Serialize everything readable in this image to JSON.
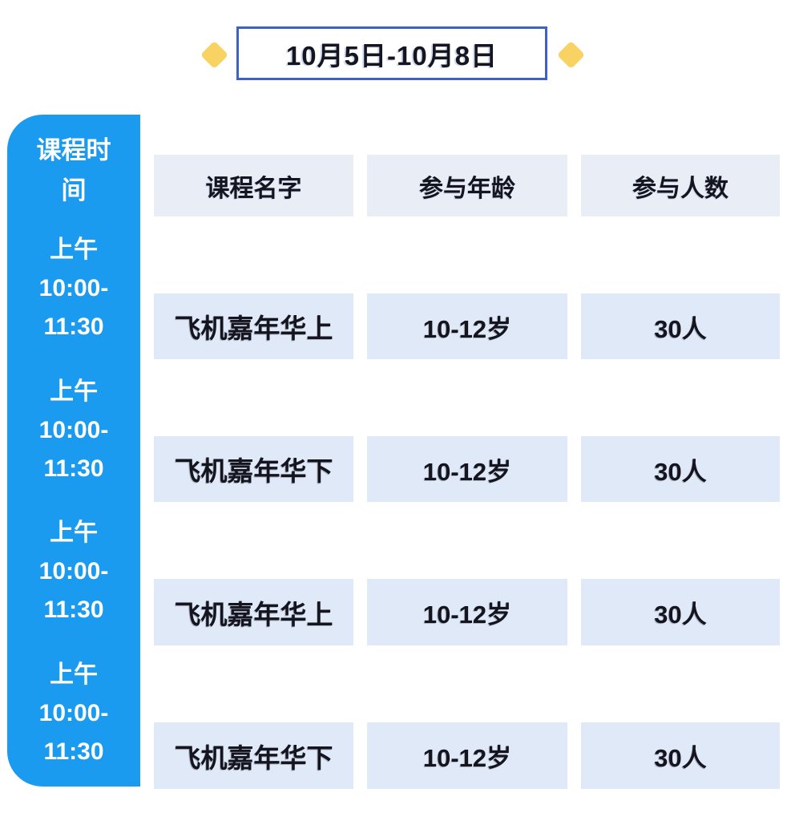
{
  "title": {
    "date_range": "10月5日-10月8日"
  },
  "colors": {
    "sidebar_blue": "#1b9bf0",
    "title_border_blue": "#3a62c8",
    "diamond_yellow": "#f8d263",
    "header_cell_bg": "#e9eef6",
    "data_cell_bg": "#dfe9f8",
    "text_dark": "#15151f"
  },
  "sidebar": {
    "header": "课程时间",
    "slots": [
      {
        "period": "上午",
        "time_start": "10:00-",
        "time_end": "11:30"
      },
      {
        "period": "上午",
        "time_start": "10:00-",
        "time_end": "11:30"
      },
      {
        "period": "上午",
        "time_start": "10:00-",
        "time_end": "11:30"
      },
      {
        "period": "上午",
        "time_start": "10:00-",
        "time_end": "11:30"
      }
    ]
  },
  "table": {
    "columns": [
      "课程名字",
      "参与年龄",
      "参与人数"
    ],
    "rows": [
      {
        "name": "飞机嘉年华上",
        "age": "10-12岁",
        "count": "30人"
      },
      {
        "name": "飞机嘉年华下",
        "age": "10-12岁",
        "count": "30人"
      },
      {
        "name": "飞机嘉年华上",
        "age": "10-12岁",
        "count": "30人"
      },
      {
        "name": "飞机嘉年华下",
        "age": "10-12岁",
        "count": "30人"
      }
    ]
  }
}
